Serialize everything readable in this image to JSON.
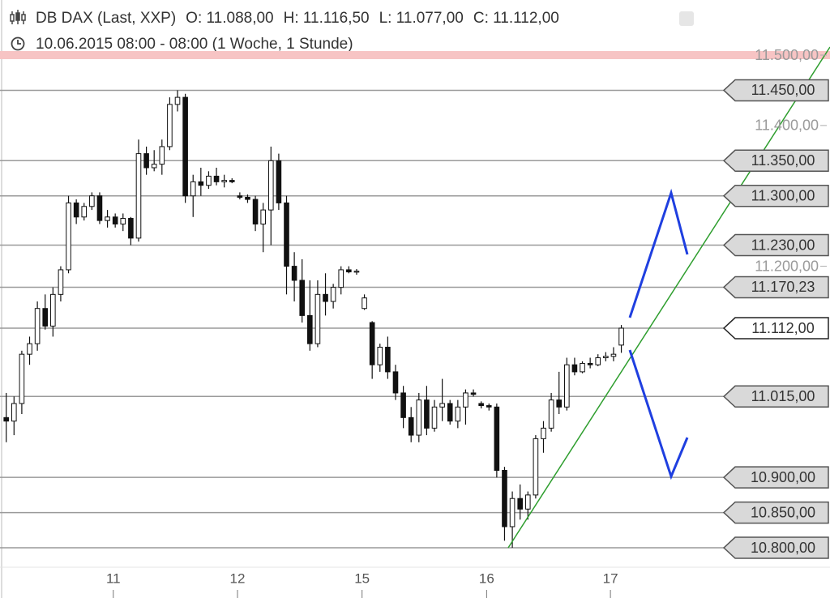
{
  "chart_data": {
    "type": "candlestick",
    "title": "DB DAX (Last, XXP)",
    "header_items": [
      "O: 11.088,00",
      "H: 11.116,50",
      "L: 11.077,00",
      "C: 11.112,00"
    ],
    "subtitle": "10.06.2015 08:00 - 08:00 (1 Woche, 1 Stunde)",
    "xlim": [
      -0.8,
      105.8
    ],
    "ylim": [
      10772.4,
      11578.3
    ],
    "xticks": [
      {
        "value": 13.75,
        "label": "11"
      },
      {
        "value": 29.7,
        "label": "12"
      },
      {
        "value": 45.7,
        "label": "15"
      },
      {
        "value": 61.7,
        "label": "16"
      },
      {
        "value": 77.6,
        "label": "17"
      }
    ],
    "yticks": [
      {
        "value": 11500,
        "label": "11.500,00"
      },
      {
        "value": 11400,
        "label": "11.400,00"
      },
      {
        "value": 11200,
        "label": "11.200,00"
      }
    ],
    "levels": [
      {
        "value": 11450,
        "label": "11.450,00"
      },
      {
        "value": 11350,
        "label": "11.350,00"
      },
      {
        "value": 11300,
        "label": "11.300,00"
      },
      {
        "value": 11230,
        "label": "11.230,00"
      },
      {
        "value": 11170.23,
        "label": "11.170,23"
      },
      {
        "value": 11015,
        "label": "11.015,00"
      },
      {
        "value": 10900,
        "label": "10.900,00"
      },
      {
        "value": 10850,
        "label": "10.850,00"
      },
      {
        "value": 10800,
        "label": "10.800,00"
      }
    ],
    "last_price": {
      "value": 11112,
      "label": "11.112,00"
    },
    "open": [
      10985,
      10980,
      11005,
      11075,
      11090,
      11140,
      11115,
      11160,
      11195,
      11290,
      11270,
      11285,
      11300,
      11265,
      11270,
      11260,
      11268,
      11240,
      11360,
      11340,
      11345,
      11370,
      11430,
      11440,
      11300,
      11320,
      11315,
      11328,
      11320,
      11322,
      11300,
      11298,
      11295,
      11260,
      11280,
      11350,
      11290,
      11200,
      11180,
      11130,
      11090,
      11160,
      11150,
      11170,
      11195,
      11192,
      11140,
      11120,
      11060,
      11085,
      11050,
      11020,
      10985,
      10960,
      11010,
      10970,
      11000,
      11005,
      10980,
      11000,
      11020,
      11005,
      11002,
      11000,
      10910,
      10830,
      10870,
      10855,
      10875,
      10955,
      10970,
      11010,
      11000,
      11060,
      11050,
      11062,
      11060,
      11070,
      11072,
      11088
    ],
    "high": [
      11020,
      11015,
      11080,
      11100,
      11150,
      11160,
      11170,
      11200,
      11300,
      11295,
      11290,
      11305,
      11305,
      11280,
      11275,
      11275,
      11270,
      11380,
      11370,
      11365,
      11380,
      11440,
      11450,
      11445,
      11330,
      11340,
      11335,
      11340,
      11330,
      11325,
      11305,
      11302,
      11300,
      11290,
      11370,
      11360,
      11300,
      11220,
      11210,
      11180,
      11180,
      11190,
      11175,
      11200,
      11200,
      11196,
      11160,
      11122,
      11090,
      11100,
      11060,
      11030,
      11000,
      11020,
      11030,
      11010,
      11040,
      11010,
      11010,
      11025,
      11025,
      11008,
      11005,
      11005,
      10915,
      10880,
      10890,
      10880,
      10960,
      10980,
      11020,
      11050,
      11070,
      11070,
      11065,
      11070,
      11075,
      11078,
      11085,
      11116.5
    ],
    "low": [
      10950,
      10960,
      10990,
      11060,
      11080,
      11110,
      11100,
      11150,
      11190,
      11260,
      11265,
      11280,
      11260,
      11255,
      11255,
      11250,
      11230,
      11235,
      11330,
      11335,
      11330,
      11365,
      11420,
      11290,
      11270,
      11300,
      11310,
      11315,
      11312,
      11318,
      11295,
      11290,
      11250,
      11220,
      11230,
      11280,
      11160,
      11150,
      11120,
      11080,
      11085,
      11130,
      11140,
      11160,
      11190,
      11188,
      11138,
      11040,
      11050,
      11040,
      11010,
      10970,
      10950,
      10950,
      10960,
      10965,
      10980,
      10975,
      10970,
      10975,
      11015,
      10998,
      10995,
      10900,
      10810,
      10800,
      10840,
      10840,
      10870,
      10935,
      10965,
      10990,
      10995,
      11045,
      11048,
      11055,
      11058,
      11065,
      11065,
      11077
    ],
    "close": [
      10980,
      11005,
      11075,
      11090,
      11140,
      11115,
      11160,
      11195,
      11290,
      11270,
      11285,
      11300,
      11265,
      11270,
      11260,
      11268,
      11240,
      11360,
      11340,
      11345,
      11370,
      11430,
      11440,
      11300,
      11320,
      11315,
      11328,
      11320,
      11322,
      11320,
      11298,
      11295,
      11260,
      11280,
      11350,
      11290,
      11200,
      11180,
      11130,
      11090,
      11160,
      11150,
      11170,
      11195,
      11192,
      11193,
      11155,
      11060,
      11085,
      11050,
      11020,
      10985,
      10960,
      11010,
      10970,
      11000,
      11005,
      10980,
      11000,
      11020,
      11018,
      11002,
      11000,
      10910,
      10830,
      10870,
      10855,
      10875,
      10955,
      10970,
      11010,
      11000,
      11060,
      11050,
      11062,
      11060,
      11070,
      11072,
      11075,
      11112
    ]
  }
}
